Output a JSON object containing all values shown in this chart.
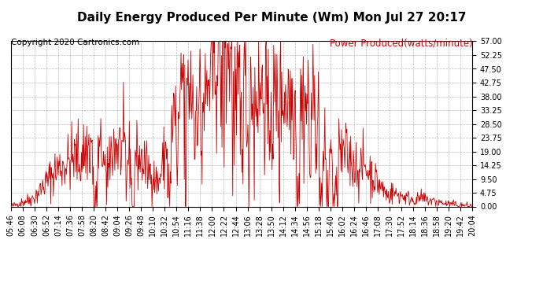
{
  "title": "Daily Energy Produced Per Minute (Wm) Mon Jul 27 20:17",
  "copyright": "Copyright 2020 Cartronics.com",
  "legend_label": "Power Produced(watts/minute)",
  "legend_color": "#cc0000",
  "title_color": "#000000",
  "copyright_color": "#000000",
  "background_color": "#ffffff",
  "grid_color": "#aaaaaa",
  "line_color": "#cc0000",
  "ylim": [
    0,
    57.0
  ],
  "yticks": [
    0.0,
    4.75,
    9.5,
    14.25,
    19.0,
    23.75,
    28.5,
    33.25,
    38.0,
    42.75,
    47.5,
    52.25,
    57.0
  ],
  "x_labels": [
    "05:46",
    "06:08",
    "06:30",
    "06:52",
    "07:14",
    "07:36",
    "07:58",
    "08:20",
    "08:42",
    "09:04",
    "09:26",
    "09:48",
    "10:10",
    "10:32",
    "10:54",
    "11:16",
    "11:38",
    "12:00",
    "12:22",
    "12:44",
    "13:06",
    "13:28",
    "13:50",
    "14:12",
    "14:34",
    "14:56",
    "15:18",
    "15:40",
    "16:02",
    "16:24",
    "16:46",
    "17:08",
    "17:30",
    "17:52",
    "18:14",
    "18:36",
    "18:58",
    "19:20",
    "19:42",
    "20:04"
  ],
  "title_fontsize": 11,
  "label_fontsize": 7,
  "copyright_fontsize": 7.5,
  "legend_fontsize": 8.5
}
